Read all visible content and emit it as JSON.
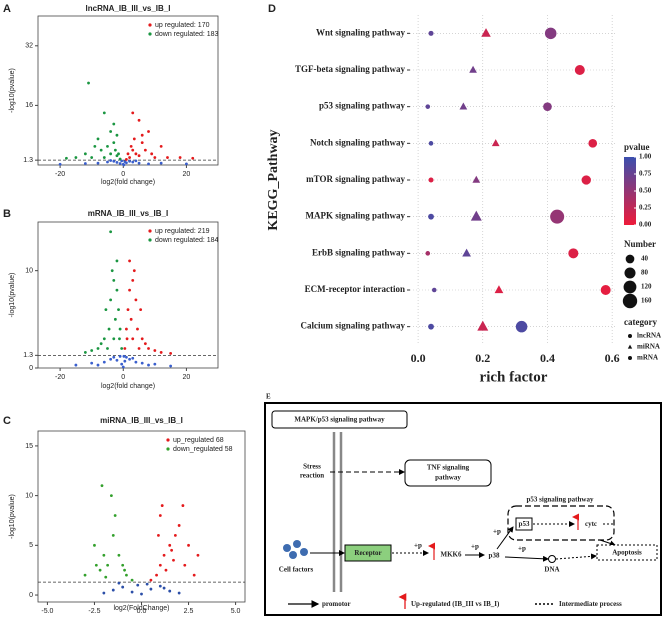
{
  "chart_data": [
    {
      "type": "scatter",
      "panel": "A",
      "title": "lncRNA_IB_III_vs_IB_I",
      "xlabel": "log2(fold change)",
      "ylabel": "-log10(pvalue)",
      "xlim": [
        -27,
        30
      ],
      "ylim": [
        0,
        40
      ],
      "xticks": [
        -20,
        0,
        20
      ],
      "yticks": [
        1.3,
        16,
        32
      ],
      "threshold": 1.3,
      "series": [
        {
          "name": "up regulated: 170",
          "color": "#e41a1c",
          "x": [
            1,
            1.5,
            2,
            2.5,
            3,
            3.5,
            4,
            5,
            6,
            7,
            8,
            9,
            10,
            12,
            14,
            18,
            22,
            5,
            3,
            6
          ],
          "values": [
            1.5,
            3,
            2,
            5,
            4,
            7,
            3,
            2.5,
            6,
            4,
            9,
            3,
            2,
            5,
            2,
            2,
            1.8,
            12,
            14,
            8
          ]
        },
        {
          "name": "down regulated: 183",
          "color": "#1a9641",
          "x": [
            -1,
            -1.5,
            -2,
            -2.5,
            -3,
            -4,
            -5,
            -6,
            -7,
            -8,
            -10,
            -12,
            -15,
            -18,
            -4,
            -3,
            -6,
            -9,
            -11,
            -2
          ],
          "values": [
            1.6,
            3,
            2.5,
            4,
            6,
            3,
            5,
            2,
            4,
            7,
            2,
            3,
            2,
            1.8,
            9,
            11,
            14,
            5,
            22,
            8
          ]
        },
        {
          "color": "#3a5fcd",
          "x": [
            -8,
            -5,
            -3,
            -2,
            -1,
            -0.5,
            0,
            0.5,
            1,
            2,
            3,
            5,
            8,
            -12,
            12,
            -20,
            20,
            -4,
            4,
            0.2
          ],
          "values": [
            0.5,
            0.8,
            1,
            0.7,
            0.4,
            1.1,
            0.2,
            0.9,
            0.6,
            1,
            0.8,
            0.5,
            0.3,
            0.4,
            0.5,
            0.2,
            0.3,
            1.2,
            1.1,
            0.05
          ]
        }
      ]
    },
    {
      "type": "scatter",
      "panel": "B",
      "title": "mRNA_IB_III_vs_IB_I",
      "xlabel": "log2(fold change)",
      "ylabel": "-log10(pvalue)",
      "xlim": [
        -27,
        30
      ],
      "ylim": [
        0,
        15
      ],
      "xticks": [
        -20,
        0,
        20
      ],
      "yticks": [
        0,
        1.3,
        10
      ],
      "threshold": 1.3,
      "series": [
        {
          "name": "up regulated: 219",
          "color": "#e41a1c",
          "x": [
            0.5,
            1,
            1.5,
            2,
            2.5,
            3,
            3,
            4,
            4.5,
            5,
            6,
            7,
            8,
            10,
            12,
            15,
            2,
            3.5,
            1.2,
            5.5
          ],
          "values": [
            2,
            4,
            6,
            8,
            5,
            3,
            9,
            7,
            4,
            2,
            3,
            2.5,
            2,
            1.8,
            1.6,
            1.5,
            11,
            10,
            3,
            6
          ]
        },
        {
          "name": "down regulated: 184",
          "color": "#1a9641",
          "x": [
            -0.5,
            -1,
            -1.5,
            -2,
            -2.5,
            -3,
            -3,
            -4,
            -4.5,
            -5,
            -6,
            -7,
            -8,
            -10,
            -12,
            -2,
            -3.5,
            -1.2,
            -5.5,
            -4
          ],
          "values": [
            2,
            4,
            6,
            8,
            5,
            3,
            9,
            7,
            4,
            2,
            3,
            2.5,
            2,
            1.8,
            1.6,
            11,
            10,
            3,
            6,
            14
          ]
        },
        {
          "color": "#3a5fcd",
          "x": [
            -15,
            -10,
            -6,
            -4,
            -3,
            -2,
            -1,
            -0.5,
            0,
            0.5,
            1,
            2,
            3,
            4,
            6,
            10,
            15,
            -8,
            8,
            0.2
          ],
          "values": [
            0.3,
            0.5,
            0.6,
            0.9,
            1.1,
            0.8,
            1.2,
            0.4,
            0.1,
            0.7,
            1.1,
            0.9,
            1,
            0.6,
            0.5,
            0.4,
            0.2,
            0.3,
            0.3,
            1.2
          ]
        }
      ]
    },
    {
      "type": "scatter",
      "panel": "C",
      "title": "miRNA_IB_III_vs_IB_I",
      "xlabel": "log2(FoldChange)",
      "ylabel": "-log10(pvalue)",
      "xlim": [
        -5.5,
        5.5
      ],
      "ylim": [
        -0.7,
        16.5
      ],
      "xticks": [
        {
          "value": -5,
          "label": "-5.0"
        },
        {
          "value": -2.5,
          "label": "-2.5"
        },
        {
          "value": 0,
          "label": "0.0"
        },
        {
          "value": 2.5,
          "label": "2.5"
        },
        {
          "value": 5,
          "label": "5.0"
        }
      ],
      "yticks": [
        0,
        5,
        10,
        15
      ],
      "threshold": 1.3,
      "series": [
        {
          "name": "up_regulated 68",
          "color": "#e41a1c",
          "x": [
            0.5,
            0.8,
            1,
            1.2,
            1.5,
            1.8,
            2,
            2.2,
            2.5,
            3,
            1,
            1.3,
            1.7,
            2.3,
            1.6,
            2.8,
            0.9,
            1.1
          ],
          "values": [
            1.5,
            2,
            3,
            4,
            5,
            6,
            7,
            9,
            5,
            4,
            8,
            2.5,
            3.5,
            3,
            4.5,
            2,
            6,
            9
          ]
        },
        {
          "name": "down_regulated 58",
          "color": "#33a02c",
          "x": [
            -0.5,
            -0.8,
            -1,
            -1.2,
            -1.5,
            -1.8,
            -2,
            -2.2,
            -2.5,
            -3,
            -1.6,
            -1.4,
            -2.1,
            -0.9,
            -2.4,
            -1.9
          ],
          "values": [
            1.5,
            2,
            3,
            4,
            6,
            3,
            4,
            2.5,
            5,
            2,
            10,
            8,
            11,
            2.5,
            3,
            1.8
          ]
        },
        {
          "color": "#2c4fa8",
          "x": [
            -2,
            -1.5,
            -1,
            -0.5,
            0,
            0.5,
            1,
            1.5,
            2,
            -0.2,
            0.3,
            -1.2,
            1.2
          ],
          "values": [
            0.2,
            0.5,
            0.8,
            0.3,
            0.1,
            0.6,
            0.9,
            0.4,
            0.2,
            1,
            1.1,
            1.2,
            0.7
          ]
        }
      ]
    },
    {
      "type": "bubble",
      "panel": "D",
      "xlabel": "rich factor",
      "ylabel": "KEGG_Pathway",
      "categories": [
        "Wnt signaling pathway",
        "TGF-beta signaling pathway",
        "p53 signaling pathway",
        "Notch signaling pathway",
        "mTOR signaling pathway",
        "MAPK signaling pathway",
        "ErbB signaling pathway",
        "ECM-receptor interaction",
        "Calcium signaling pathway"
      ],
      "xlim": [
        -0.025,
        0.615
      ],
      "xticks": [
        {
          "value": 0,
          "label": "0.0"
        },
        {
          "value": 0.2,
          "label": "0.2"
        },
        {
          "value": 0.4,
          "label": "0.4"
        },
        {
          "value": 0.6,
          "label": "0.6"
        }
      ],
      "grid": true,
      "color_title": "pvalue",
      "clim": [
        0,
        1
      ],
      "colorscale": {
        "low": "#ee1b3a",
        "high": "#3b4fae"
      },
      "cticks": [
        {
          "value": 1,
          "label": "1.00"
        },
        {
          "value": 0.75,
          "label": "0.75"
        },
        {
          "value": 0.5,
          "label": "0.50"
        },
        {
          "value": 0.25,
          "label": "0.25"
        },
        {
          "value": 0,
          "label": "0.00"
        }
      ],
      "size_title": "Number",
      "size_ticks": [
        40,
        80,
        120,
        160
      ],
      "category_title": "category",
      "series": [
        {
          "name": "lncRNA",
          "shape": "circle",
          "values": [
            0.04,
            null,
            0.03,
            0.04,
            0.04,
            0.04,
            0.03,
            0.05,
            0.04
          ],
          "pvalue": [
            0.8,
            null,
            0.8,
            0.9,
            0.1,
            0.9,
            0.4,
            0.8,
            0.9
          ],
          "size": [
            5,
            null,
            3,
            3,
            5,
            10,
            3,
            3,
            10
          ]
        },
        {
          "name": "miRNA",
          "shape": "triangle",
          "values": [
            0.21,
            0.17,
            0.14,
            0.24,
            0.18,
            0.18,
            0.15,
            0.25,
            0.2
          ],
          "pvalue": [
            0.2,
            0.7,
            0.7,
            0.2,
            0.6,
            0.7,
            0.8,
            0.1,
            0.2
          ],
          "size": [
            40,
            20,
            20,
            20,
            20,
            60,
            30,
            30,
            60
          ]
        },
        {
          "name": "mRNA",
          "shape": "circle",
          "values": [
            0.41,
            0.5,
            0.4,
            0.54,
            0.52,
            0.43,
            0.48,
            0.58,
            0.32
          ],
          "pvalue": [
            0.6,
            0.1,
            0.6,
            0.1,
            0.1,
            0.5,
            0.1,
            0.05,
            0.9
          ],
          "size": [
            90,
            60,
            40,
            40,
            50,
            150,
            60,
            60,
            90
          ]
        }
      ]
    }
  ],
  "diagram": {
    "panel": "E",
    "title": "MAPK/p53 signaling pathway",
    "stress": [
      "Stress",
      "reaction"
    ],
    "tnf": [
      "TNF signaling",
      "pathway"
    ],
    "receptor": "Receptor",
    "cell_factors": "Cell factors",
    "phospho": [
      "+p",
      "+p",
      "+p",
      "+p"
    ],
    "mkk6": "MKK6",
    "p38": "p38",
    "p53_pathway": "p53 signaling pathway",
    "p53": "p53",
    "cytc": "cytc",
    "apoptosis": "Apoptosis",
    "dna": "DNA",
    "legend": [
      "promotor",
      "Up-regulated (IB_III vs IB_I)",
      "Intermediate process"
    ]
  }
}
